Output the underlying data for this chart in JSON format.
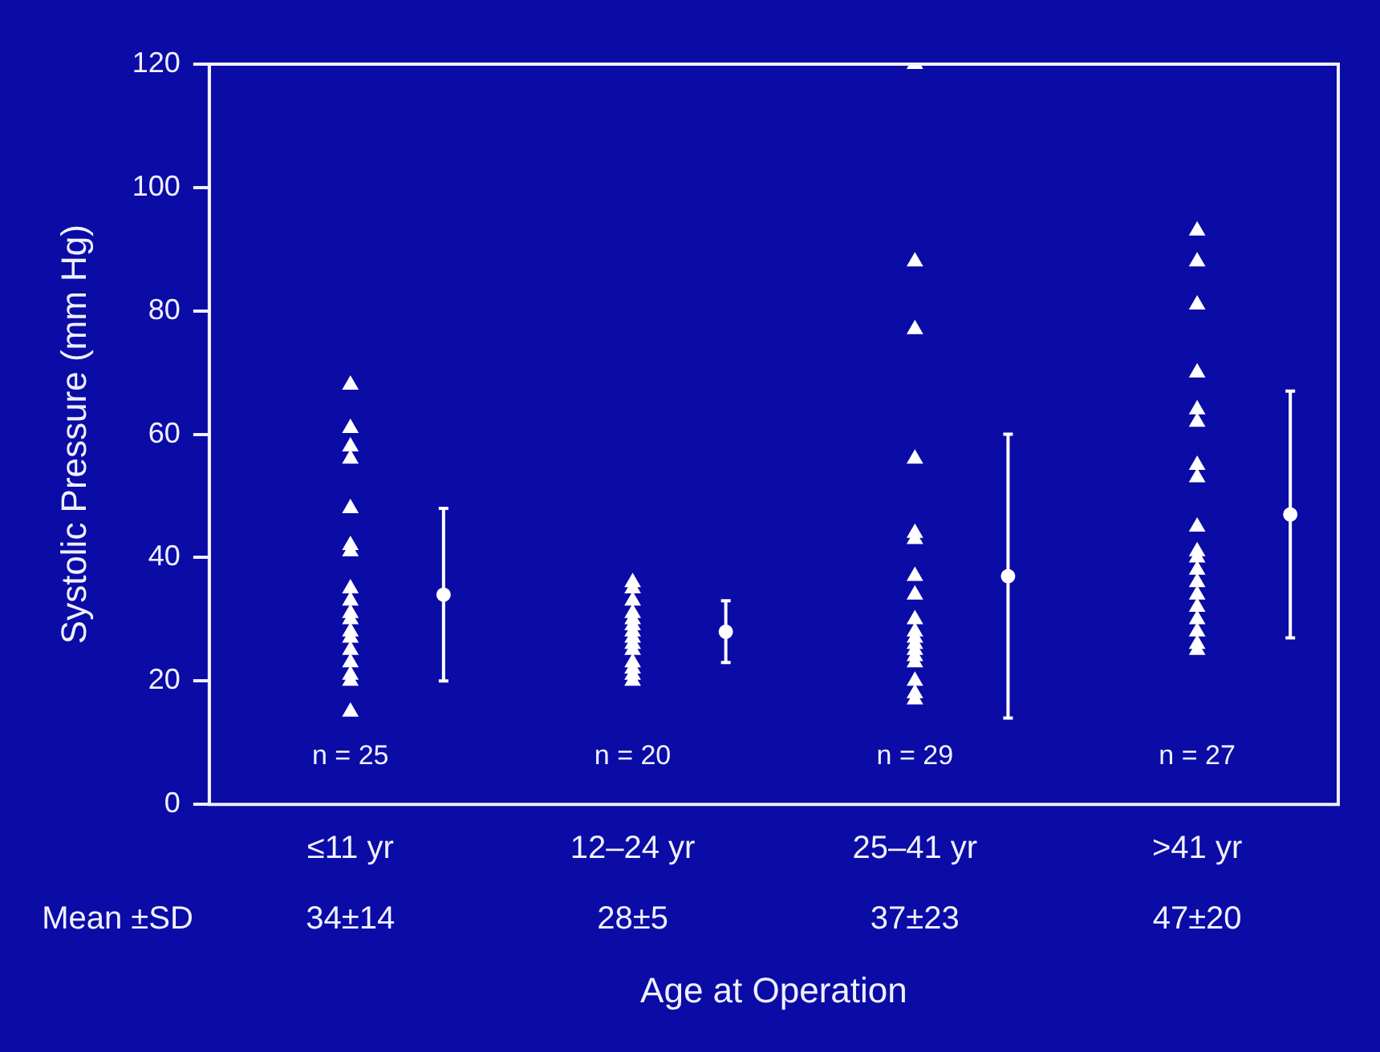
{
  "chart_data": {
    "type": "scatter",
    "categories": [
      "≤11 yr",
      "12–24 yr",
      "25–41 yr",
      ">41 yr"
    ],
    "ylabel": "Systolic Pressure (mm Hg)",
    "xlabel": "Age at Operation",
    "ylim": [
      0,
      120
    ],
    "yticks": [
      0,
      20,
      40,
      60,
      80,
      100,
      120
    ],
    "grid": false,
    "legend": false,
    "series": [
      {
        "marker": "triangle",
        "color": "#ffffff",
        "x": [
          "≤11 yr",
          "≤11 yr",
          "≤11 yr",
          "≤11 yr",
          "≤11 yr",
          "≤11 yr",
          "≤11 yr",
          "≤11 yr",
          "≤11 yr",
          "≤11 yr",
          "≤11 yr",
          "≤11 yr",
          "≤11 yr",
          "≤11 yr",
          "≤11 yr",
          "≤11 yr",
          "≤11 yr",
          "≤11 yr",
          "12–24 yr",
          "12–24 yr",
          "12–24 yr",
          "12–24 yr",
          "12–24 yr",
          "12–24 yr",
          "12–24 yr",
          "12–24 yr",
          "12–24 yr",
          "12–24 yr",
          "12–24 yr",
          "12–24 yr",
          "12–24 yr",
          "12–24 yr",
          "25–41 yr",
          "25–41 yr",
          "25–41 yr",
          "25–41 yr",
          "25–41 yr",
          "25–41 yr",
          "25–41 yr",
          "25–41 yr",
          "25–41 yr",
          "25–41 yr",
          "25–41 yr",
          "25–41 yr",
          "25–41 yr",
          "25–41 yr",
          "25–41 yr",
          "25–41 yr",
          "25–41 yr",
          "25–41 yr",
          ">41 yr",
          ">41 yr",
          ">41 yr",
          ">41 yr",
          ">41 yr",
          ">41 yr",
          ">41 yr",
          ">41 yr",
          ">41 yr",
          ">41 yr",
          ">41 yr",
          ">41 yr",
          ">41 yr",
          ">41 yr",
          ">41 yr",
          ">41 yr",
          ">41 yr",
          ">41 yr",
          ">41 yr"
        ],
        "values": [
          68,
          61,
          58,
          56,
          48,
          42,
          41,
          35,
          33,
          31,
          30,
          28,
          27,
          25,
          23,
          21,
          20,
          15,
          36,
          35,
          33,
          31,
          30,
          29,
          28,
          27,
          26,
          25,
          23,
          22,
          21,
          20,
          120,
          88,
          77,
          56,
          44,
          43,
          37,
          34,
          30,
          28,
          27,
          26,
          25,
          24,
          23,
          20,
          18,
          17,
          93,
          88,
          81,
          70,
          64,
          62,
          55,
          53,
          45,
          41,
          40,
          38,
          36,
          34,
          32,
          30,
          28,
          26,
          25
        ]
      },
      {
        "marker": "circle",
        "color": "#ffffff",
        "x": [
          "≤11 yr",
          "12–24 yr",
          "25–41 yr",
          ">41 yr"
        ],
        "values": [
          34,
          28,
          37,
          47
        ],
        "errors": [
          14,
          5,
          23,
          20
        ]
      }
    ],
    "annotations": [
      "n = 25",
      "n = 20",
      "n = 29",
      "n = 27",
      "Mean ±SD",
      "34±14",
      "28±5",
      "37±23",
      "47±20"
    ]
  }
}
